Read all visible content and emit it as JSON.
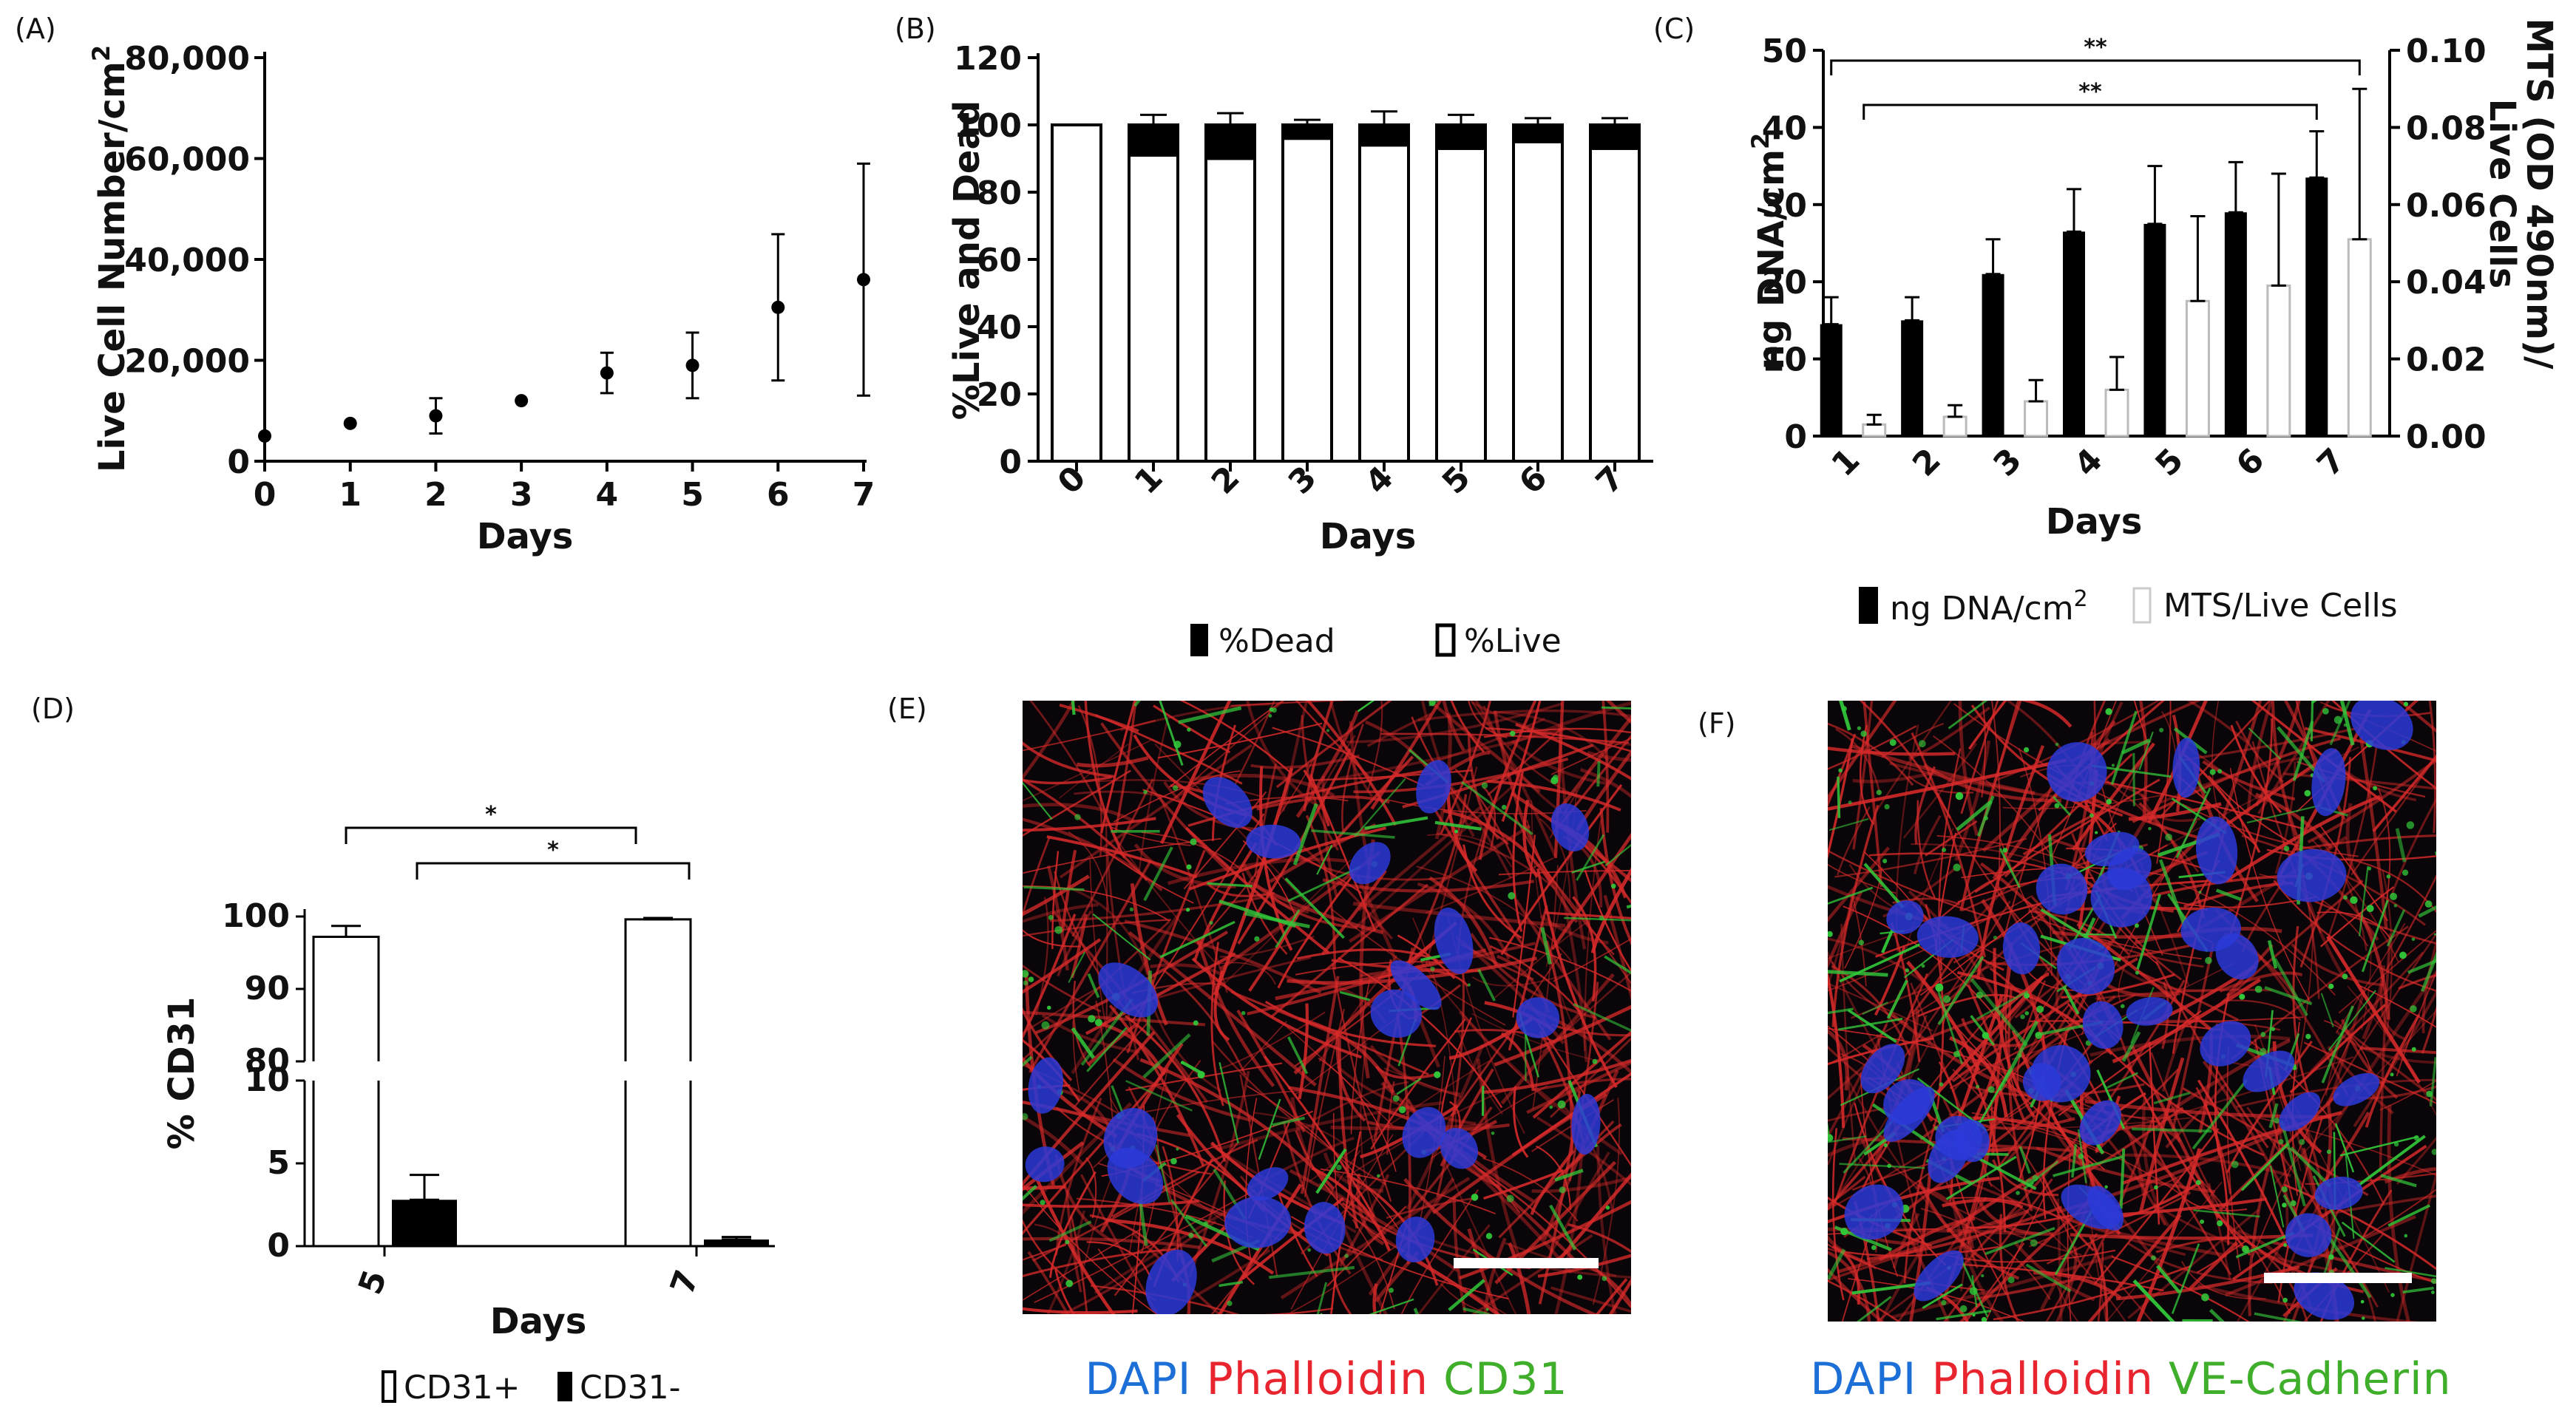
{
  "colors": {
    "black": "#000000",
    "white": "#ffffff",
    "dapi": "#1c6fd6",
    "phalloidin": "#e8252f",
    "green": "#3fae2a",
    "micro_bg": "#0a0508",
    "nucleus": "#2b39d8",
    "actin": "#d82a2a",
    "membrane": "#32c83a",
    "scale_bar": "#ffffff"
  },
  "icons": [
    "dapi-nucleus-shape",
    "actin-filament-stroke",
    "membrane-green-dot"
  ],
  "chart_data": [
    {
      "panel": "(A)",
      "type": "scatter",
      "x": [
        0,
        1,
        2,
        3,
        4,
        5,
        6,
        7
      ],
      "y": [
        5000,
        7500,
        9000,
        12000,
        17500,
        19000,
        30500,
        36000
      ],
      "err": [
        0,
        0,
        3500,
        0,
        4000,
        6500,
        14500,
        23000
      ],
      "xlabel": "Days",
      "ylabel_main": "Live Cell Number/cm",
      "ylabel_sup": "2",
      "xlim": [
        0,
        7
      ],
      "ylim": [
        0,
        80000
      ],
      "xticks": [
        "0",
        "1",
        "2",
        "3",
        "4",
        "5",
        "6",
        "7"
      ],
      "yticks": [
        0,
        20000,
        40000,
        60000,
        80000
      ],
      "ytick_labels": [
        "0",
        "20,000",
        "40,000",
        "60,000",
        "80,000"
      ],
      "grid": false
    },
    {
      "panel": "(B)",
      "type": "bar",
      "stacked": true,
      "categories": [
        "0",
        "1",
        "2",
        "3",
        "4",
        "5",
        "6",
        "7"
      ],
      "series": [
        {
          "name": "%Live",
          "values": [
            100,
            91,
            90,
            96,
            94,
            93,
            95,
            93
          ],
          "color": "#ffffff"
        },
        {
          "name": "%Dead",
          "values": [
            0,
            9,
            10,
            4,
            6,
            7,
            5,
            7
          ],
          "color": "#000000"
        }
      ],
      "err_top": [
        0,
        3,
        3.5,
        1.5,
        4,
        3,
        2,
        2
      ],
      "xlabel": "Days",
      "ylabel": "%Live and Dead",
      "ylim": [
        0,
        120
      ],
      "yticks": [
        "0",
        "20",
        "40",
        "60",
        "80",
        "100",
        "120"
      ],
      "legend": [
        "%Dead",
        "%Live"
      ],
      "legend_position": "bottom",
      "grid": false
    },
    {
      "panel": "(C)",
      "type": "bar",
      "categories": [
        "1",
        "2",
        "3",
        "4",
        "5",
        "6",
        "7"
      ],
      "series": [
        {
          "name": "ng DNA/cm2",
          "axis": "left",
          "values": [
            14.5,
            15,
            21,
            26.5,
            27.5,
            29,
            33.5
          ],
          "err": [
            3.5,
            3,
            4.5,
            5.5,
            7.5,
            6.5,
            6
          ],
          "color": "#000000"
        },
        {
          "name": "MTS/Live Cells",
          "axis": "right",
          "values": [
            0.003,
            0.005,
            0.009,
            0.012,
            0.035,
            0.039,
            0.051
          ],
          "err": [
            0.0025,
            0.003,
            0.0055,
            0.0085,
            0.022,
            0.029,
            0.039
          ],
          "color": "#ffffff"
        }
      ],
      "xlabel": "Days",
      "ylabel_left_main": "ng DNA/cm",
      "ylabel_left_sup": "2",
      "ylabel_right": "MTS (OD 490nm)/",
      "ylabel_right_2": "Live Cells",
      "ylim_left": [
        0,
        50
      ],
      "ylim_right": [
        0,
        0.1
      ],
      "yticks_left": [
        "0",
        "10",
        "20",
        "30",
        "40",
        "50"
      ],
      "yticks_right": [
        "0.00",
        "0.02",
        "0.04",
        "0.06",
        "0.08",
        "0.10"
      ],
      "legend_dna_main": "ng DNA/cm",
      "legend_dna_sup": "2",
      "legend_mts": "MTS/Live Cells",
      "significance": [
        {
          "from": "1",
          "to": "7",
          "label": "**"
        },
        {
          "from": "1",
          "to": "7",
          "label": "**"
        }
      ],
      "grid": false
    },
    {
      "panel": "(D)",
      "type": "bar",
      "categories": [
        "5",
        "7"
      ],
      "series": [
        {
          "name": "CD31+",
          "values": [
            97.2,
            99.6
          ],
          "err": [
            1.5,
            0.2
          ],
          "color": "#ffffff"
        },
        {
          "name": "CD31-",
          "values": [
            2.8,
            0.4
          ],
          "err": [
            1.5,
            0.15
          ],
          "color": "#000000"
        }
      ],
      "xlabel": "Days",
      "ylabel": "% CD31",
      "axis_break": {
        "lower": [
          0,
          10
        ],
        "upper": [
          80,
          100
        ]
      },
      "yticks_lower": [
        "0",
        "5",
        "10"
      ],
      "yticks_upper": [
        "80",
        "90",
        "100"
      ],
      "legend": [
        "CD31+",
        "CD31-"
      ],
      "significance": [
        {
          "from": "5 CD31+",
          "to": "7 CD31+",
          "label": "*"
        },
        {
          "from": "5 CD31-",
          "to": "7 CD31-",
          "label": "*"
        }
      ],
      "grid": false
    }
  ],
  "panels": {
    "a": "(A)",
    "b": "(B)",
    "c": "(C)",
    "d": "(D)",
    "e": "(E)",
    "f": "(F)"
  },
  "micrographs": {
    "e": {
      "dapi": "DAPI",
      "phalloidin": "Phalloidin",
      "marker": "CD31"
    },
    "f": {
      "dapi": "DAPI",
      "phalloidin": "Phalloidin",
      "marker": "VE-Cadherin"
    }
  }
}
